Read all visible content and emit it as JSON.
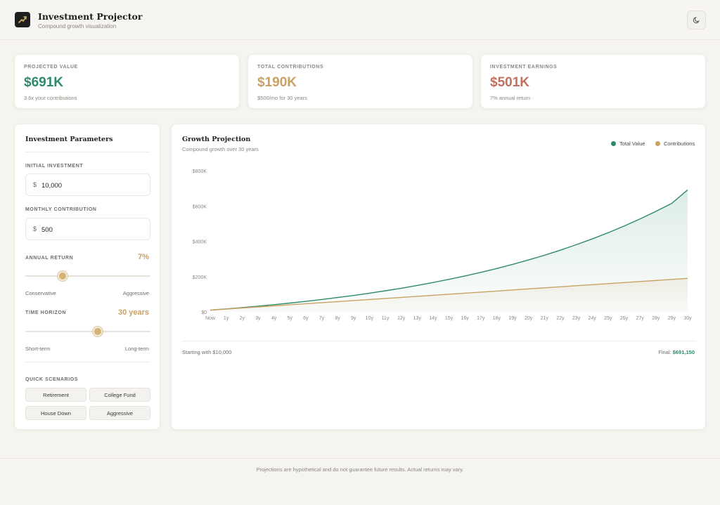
{
  "header": {
    "title": "Investment Projector",
    "subtitle": "Compound growth visualization",
    "theme_icon": "moon-icon"
  },
  "stats": [
    {
      "label": "PROJECTED VALUE",
      "value": "$691K",
      "note": "3.6x your contributions",
      "color": "#2e8b67"
    },
    {
      "label": "TOTAL CONTRIBUTIONS",
      "value": "$190K",
      "note": "$500/mo for 30 years",
      "color": "#c9a262"
    },
    {
      "label": "INVESTMENT EARNINGS",
      "value": "$501K",
      "note": "7% annual return",
      "color": "#c1705f"
    }
  ],
  "params": {
    "title": "Investment Parameters",
    "initial_label": "INITIAL INVESTMENT",
    "initial_currency": "$",
    "initial_value": "10,000",
    "monthly_label": "MONTHLY CONTRIBUTION",
    "monthly_currency": "$",
    "monthly_value": "500",
    "return_label": "ANNUAL RETURN",
    "return_value": "7%",
    "return_level": 0.3,
    "return_min_label": "Conservative",
    "return_max_label": "Aggressive",
    "horizon_label": "TIME HORIZON",
    "horizon_value": "30 years",
    "horizon_level": 0.58,
    "horizon_min_label": "Short-term",
    "horizon_max_label": "Long-term",
    "scenarios_label": "QUICK SCENARIOS",
    "scenarios": [
      "Retirement",
      "College Fund",
      "House Down",
      "Aggressive"
    ]
  },
  "chart": {
    "title": "Growth Projection",
    "subtitle": "Compound growth over 30 years",
    "legend": [
      {
        "name": "Total Value",
        "color": "#2e8b67"
      },
      {
        "name": "Contributions",
        "color": "#c9a262"
      }
    ],
    "footer_left": "Starting with $10,000",
    "footer_right_prefix": "Final: ",
    "footer_right_value": "$691,150"
  },
  "chart_data": {
    "type": "area",
    "x": [
      "Now",
      "1y",
      "2y",
      "3y",
      "4y",
      "5y",
      "6y",
      "7y",
      "8y",
      "9y",
      "10y",
      "11y",
      "12y",
      "13y",
      "14y",
      "15y",
      "16y",
      "17y",
      "18y",
      "19y",
      "20y",
      "21y",
      "22y",
      "23y",
      "24y",
      "25y",
      "26y",
      "27y",
      "28y",
      "29y",
      "30y"
    ],
    "series": [
      {
        "name": "Total Value",
        "values": [
          10000,
          16900,
          24300,
          32200,
          40700,
          49800,
          59500,
          69900,
          81000,
          92900,
          105700,
          119300,
          133900,
          149500,
          166200,
          184100,
          203200,
          223700,
          245600,
          269000,
          294100,
          320900,
          349600,
          380300,
          413100,
          448300,
          485900,
          526100,
          569100,
          615100,
          691150
        ]
      },
      {
        "name": "Contributions",
        "values": [
          10000,
          16000,
          22000,
          28000,
          34000,
          40000,
          46000,
          52000,
          58000,
          64000,
          70000,
          76000,
          82000,
          88000,
          94000,
          100000,
          106000,
          112000,
          118000,
          124000,
          130000,
          136000,
          142000,
          148000,
          154000,
          160000,
          166000,
          172000,
          178000,
          184000,
          190000
        ]
      }
    ],
    "y_ticks": [
      "$0",
      "$200K",
      "$400K",
      "$600K",
      "$800K"
    ],
    "ylim": [
      0,
      800000
    ],
    "grid": false,
    "legend_position": "top-right"
  },
  "footer": {
    "text": "Projections are hypothetical and do not guarantee future results. Actual returns may vary."
  }
}
